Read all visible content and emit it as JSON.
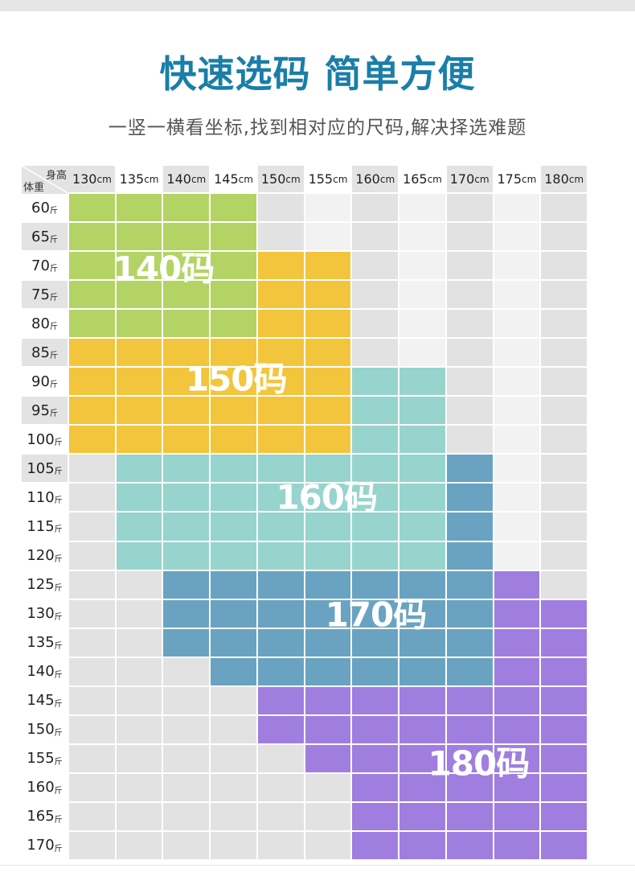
{
  "header": {
    "title": "快速选码 简单方便",
    "subtitle": "一竖一横看坐标,找到相对应的尺码,解决择选难题"
  },
  "colors": {
    "title": "#1a7ea8",
    "empty_dark": "#e2e2e2",
    "empty_light": "#f2f2f2",
    "header_gray": "#e3e3e3",
    "header_white": "#ffffff"
  },
  "chart_data": {
    "type": "table",
    "title": "快速选码 简单方便",
    "corner": {
      "column_axis": "身高",
      "row_axis": "体重"
    },
    "column_unit": "cm",
    "row_unit": "斤",
    "columns": [
      "130",
      "135",
      "140",
      "145",
      "150",
      "155",
      "160",
      "165",
      "170",
      "175",
      "180"
    ],
    "rows": [
      "60",
      "65",
      "70",
      "75",
      "80",
      "85",
      "90",
      "95",
      "100",
      "105",
      "110",
      "115",
      "120",
      "125",
      "130",
      "135",
      "140",
      "145",
      "150",
      "155",
      "160",
      "165",
      "170"
    ],
    "sizes": [
      {
        "key": "140",
        "label": "140码",
        "color": "#b3d465"
      },
      {
        "key": "150",
        "label": "150码",
        "color": "#f2c53d"
      },
      {
        "key": "160",
        "label": "160码",
        "color": "#96d4cd"
      },
      {
        "key": "170",
        "label": "170码",
        "color": "#69a3c1"
      },
      {
        "key": "180",
        "label": "180码",
        "color": "#a07ee0"
      }
    ],
    "grid": [
      [
        "140",
        "140",
        "140",
        "140",
        "",
        "",
        "",
        "",
        "",
        "",
        ""
      ],
      [
        "140",
        "140",
        "140",
        "140",
        "",
        "",
        "",
        "",
        "",
        "",
        ""
      ],
      [
        "140",
        "140",
        "140",
        "140",
        "150",
        "150",
        "",
        "",
        "",
        "",
        ""
      ],
      [
        "140",
        "140",
        "140",
        "140",
        "150",
        "150",
        "",
        "",
        "",
        "",
        ""
      ],
      [
        "140",
        "140",
        "140",
        "140",
        "150",
        "150",
        "",
        "",
        "",
        "",
        ""
      ],
      [
        "150",
        "150",
        "150",
        "150",
        "150",
        "150",
        "",
        "",
        "",
        "",
        ""
      ],
      [
        "150",
        "150",
        "150",
        "150",
        "150",
        "150",
        "160",
        "160",
        "",
        "",
        ""
      ],
      [
        "150",
        "150",
        "150",
        "150",
        "150",
        "150",
        "160",
        "160",
        "",
        "",
        ""
      ],
      [
        "150",
        "150",
        "150",
        "150",
        "150",
        "150",
        "160",
        "160",
        "",
        "",
        ""
      ],
      [
        "",
        "160",
        "160",
        "160",
        "160",
        "160",
        "160",
        "160",
        "170",
        "",
        ""
      ],
      [
        "",
        "160",
        "160",
        "160",
        "160",
        "160",
        "160",
        "160",
        "170",
        "",
        ""
      ],
      [
        "",
        "160",
        "160",
        "160",
        "160",
        "160",
        "160",
        "160",
        "170",
        "",
        ""
      ],
      [
        "",
        "160",
        "160",
        "160",
        "160",
        "160",
        "160",
        "160",
        "170",
        "",
        ""
      ],
      [
        "",
        "",
        "170",
        "170",
        "170",
        "170",
        "170",
        "170",
        "170",
        "180",
        ""
      ],
      [
        "",
        "",
        "170",
        "170",
        "170",
        "170",
        "170",
        "170",
        "170",
        "180",
        "180"
      ],
      [
        "",
        "",
        "170",
        "170",
        "170",
        "170",
        "170",
        "170",
        "170",
        "180",
        "180"
      ],
      [
        "",
        "",
        "",
        "170",
        "170",
        "170",
        "170",
        "170",
        "170",
        "180",
        "180"
      ],
      [
        "",
        "",
        "",
        "",
        "180",
        "180",
        "180",
        "180",
        "180",
        "180",
        "180"
      ],
      [
        "",
        "",
        "",
        "",
        "180",
        "180",
        "180",
        "180",
        "180",
        "180",
        "180"
      ],
      [
        "",
        "",
        "",
        "",
        "",
        "180",
        "180",
        "180",
        "180",
        "180",
        "180"
      ],
      [
        "",
        "",
        "",
        "",
        "",
        "",
        "180",
        "180",
        "180",
        "180",
        "180"
      ],
      [
        "",
        "",
        "",
        "",
        "",
        "",
        "180",
        "180",
        "180",
        "180",
        "180"
      ],
      [
        "",
        "",
        "",
        "",
        "",
        "",
        "180",
        "180",
        "180",
        "180",
        "180"
      ]
    ]
  }
}
